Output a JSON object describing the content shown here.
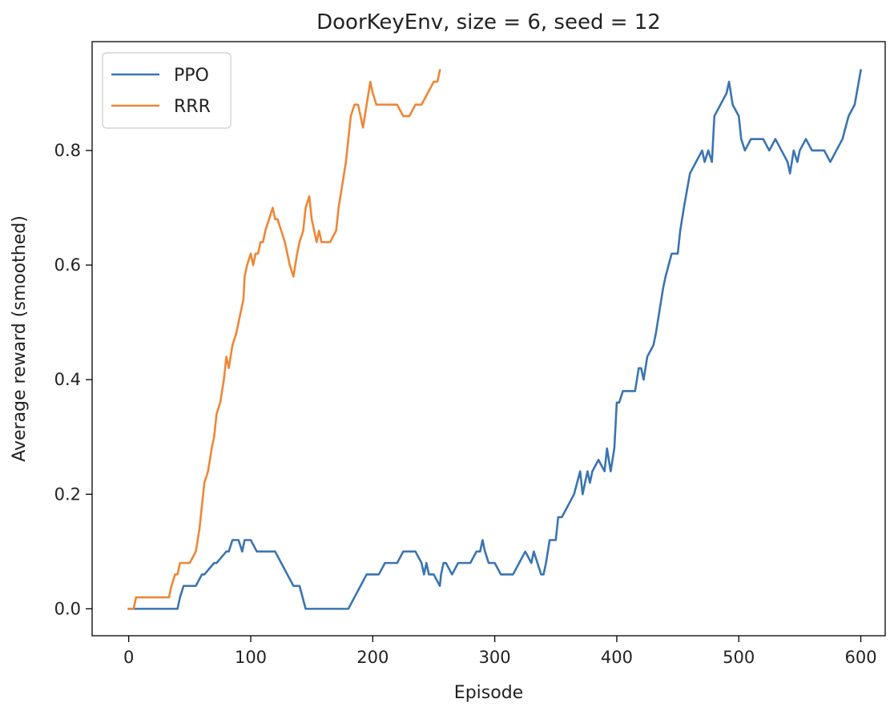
{
  "chart_data": {
    "type": "line",
    "title": "DoorKeyEnv, size = 6, seed = 12",
    "xlabel": "Episode",
    "ylabel": "Average reward (smoothed)",
    "xlim": [
      -30,
      620
    ],
    "ylim": [
      -0.047,
      0.99
    ],
    "xticks": [
      0,
      100,
      200,
      300,
      400,
      500,
      600
    ],
    "xtick_labels": [
      "0",
      "100",
      "200",
      "300",
      "400",
      "500",
      "600"
    ],
    "yticks": [
      0.0,
      0.2,
      0.4,
      0.6,
      0.8
    ],
    "ytick_labels": [
      "0.0",
      "0.2",
      "0.4",
      "0.6",
      "0.8"
    ],
    "grid": false,
    "legend_position": "top-left",
    "series": [
      {
        "name": "PPO",
        "color": "#3a74b1",
        "x": [
          0,
          5,
          40,
          42,
          45,
          55,
          60,
          62,
          70,
          72,
          80,
          82,
          85,
          88,
          90,
          93,
          95,
          98,
          100,
          105,
          110,
          115,
          120,
          125,
          130,
          135,
          140,
          145,
          150,
          160,
          170,
          180,
          185,
          190,
          195,
          200,
          205,
          210,
          215,
          220,
          225,
          230,
          235,
          240,
          242,
          244,
          246,
          248,
          250,
          255,
          256,
          258,
          260,
          265,
          270,
          275,
          280,
          285,
          288,
          290,
          292,
          295,
          300,
          305,
          310,
          315,
          320,
          325,
          330,
          332,
          335,
          338,
          340,
          342,
          345,
          350,
          352,
          355,
          360,
          365,
          370,
          372,
          374,
          376,
          378,
          380,
          385,
          390,
          392,
          395,
          398,
          400,
          402,
          405,
          408,
          410,
          412,
          415,
          418,
          420,
          422,
          425,
          430,
          432,
          435,
          438,
          440,
          445,
          450,
          452,
          455,
          460,
          465,
          470,
          472,
          475,
          478,
          480,
          485,
          490,
          492,
          495,
          500,
          502,
          505,
          510,
          515,
          520,
          525,
          530,
          535,
          540,
          542,
          545,
          548,
          550,
          555,
          560,
          565,
          570,
          575,
          580,
          585,
          590,
          595,
          600
        ],
        "y": [
          0.0,
          0.0,
          0.0,
          0.02,
          0.04,
          0.04,
          0.06,
          0.06,
          0.08,
          0.08,
          0.1,
          0.1,
          0.12,
          0.12,
          0.12,
          0.1,
          0.12,
          0.12,
          0.12,
          0.1,
          0.1,
          0.1,
          0.1,
          0.08,
          0.06,
          0.04,
          0.04,
          0.0,
          0.0,
          0.0,
          0.0,
          0.0,
          0.02,
          0.04,
          0.06,
          0.06,
          0.06,
          0.08,
          0.08,
          0.08,
          0.1,
          0.1,
          0.1,
          0.08,
          0.06,
          0.08,
          0.06,
          0.06,
          0.06,
          0.04,
          0.06,
          0.08,
          0.08,
          0.06,
          0.08,
          0.08,
          0.08,
          0.1,
          0.1,
          0.12,
          0.1,
          0.08,
          0.08,
          0.06,
          0.06,
          0.06,
          0.08,
          0.1,
          0.08,
          0.1,
          0.08,
          0.06,
          0.06,
          0.08,
          0.12,
          0.12,
          0.16,
          0.16,
          0.18,
          0.2,
          0.24,
          0.2,
          0.22,
          0.24,
          0.22,
          0.24,
          0.26,
          0.24,
          0.28,
          0.24,
          0.28,
          0.36,
          0.36,
          0.38,
          0.38,
          0.38,
          0.38,
          0.38,
          0.42,
          0.42,
          0.4,
          0.44,
          0.46,
          0.48,
          0.52,
          0.56,
          0.58,
          0.62,
          0.62,
          0.66,
          0.7,
          0.76,
          0.78,
          0.8,
          0.78,
          0.8,
          0.78,
          0.86,
          0.88,
          0.9,
          0.92,
          0.88,
          0.86,
          0.82,
          0.8,
          0.82,
          0.82,
          0.82,
          0.8,
          0.82,
          0.8,
          0.78,
          0.76,
          0.8,
          0.78,
          0.8,
          0.82,
          0.8,
          0.8,
          0.8,
          0.78,
          0.8,
          0.82,
          0.86,
          0.88,
          0.94
        ]
      },
      {
        "name": "RRR",
        "color": "#ef8636",
        "x": [
          0,
          2,
          4,
          6,
          10,
          20,
          30,
          33,
          35,
          38,
          40,
          42,
          45,
          50,
          55,
          58,
          60,
          62,
          65,
          68,
          70,
          72,
          75,
          78,
          80,
          82,
          85,
          88,
          90,
          92,
          94,
          95,
          97,
          100,
          102,
          104,
          106,
          108,
          110,
          112,
          115,
          118,
          120,
          122,
          125,
          128,
          130,
          132,
          135,
          138,
          140,
          143,
          145,
          148,
          150,
          152,
          154,
          156,
          158,
          160,
          165,
          170,
          172,
          175,
          178,
          180,
          182,
          185,
          188,
          190,
          192,
          195,
          198,
          200,
          203,
          205,
          208,
          210,
          215,
          220,
          225,
          230,
          235,
          240,
          245,
          250,
          253,
          255
        ],
        "y": [
          0.0,
          0.0,
          0.0,
          0.02,
          0.02,
          0.02,
          0.02,
          0.02,
          0.04,
          0.06,
          0.06,
          0.08,
          0.08,
          0.08,
          0.1,
          0.14,
          0.18,
          0.22,
          0.24,
          0.28,
          0.3,
          0.34,
          0.36,
          0.4,
          0.44,
          0.42,
          0.46,
          0.48,
          0.5,
          0.52,
          0.54,
          0.58,
          0.6,
          0.62,
          0.6,
          0.62,
          0.62,
          0.64,
          0.64,
          0.66,
          0.68,
          0.7,
          0.68,
          0.68,
          0.66,
          0.64,
          0.62,
          0.6,
          0.58,
          0.62,
          0.64,
          0.66,
          0.7,
          0.72,
          0.68,
          0.66,
          0.64,
          0.66,
          0.64,
          0.64,
          0.64,
          0.66,
          0.7,
          0.74,
          0.78,
          0.82,
          0.86,
          0.88,
          0.88,
          0.86,
          0.84,
          0.88,
          0.92,
          0.9,
          0.88,
          0.88,
          0.88,
          0.88,
          0.88,
          0.88,
          0.86,
          0.86,
          0.88,
          0.88,
          0.9,
          0.92,
          0.92,
          0.94
        ]
      }
    ]
  }
}
